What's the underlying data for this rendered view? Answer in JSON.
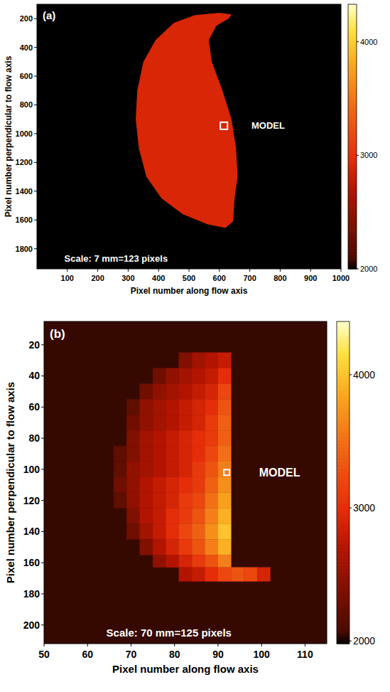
{
  "chart_data": [
    {
      "type": "heatmap",
      "panel_label": "(a)",
      "x_label": "Pixel number along flow axis",
      "y_label": "Pixel number perpendicular to flow axis",
      "xlim": [
        0,
        1000
      ],
      "ylim": [
        100,
        1940
      ],
      "xticks": [
        100,
        200,
        300,
        400,
        500,
        600,
        700,
        800,
        900,
        1000
      ],
      "yticks": [
        200,
        400,
        600,
        800,
        1000,
        1200,
        1400,
        1600,
        1800
      ],
      "background": 2000,
      "region": {
        "x": [
          600,
          520,
          450,
          390,
          350,
          330,
          325,
          335,
          360,
          410,
          480,
          560,
          620,
          645,
          650,
          660,
          655,
          640,
          610,
          575,
          565,
          590,
          630,
          640
        ],
        "y": [
          160,
          175,
          230,
          350,
          500,
          700,
          900,
          1100,
          1300,
          1450,
          1560,
          1630,
          1655,
          1610,
          1450,
          1300,
          1100,
          900,
          700,
          500,
          350,
          250,
          200,
          170
        ],
        "value": 2900
      },
      "probe": {
        "x": 615,
        "y": 945
      },
      "model_label": "MODEL",
      "scale_note": "Scale: 7 mm=123 pixels",
      "colorbar": {
        "range": [
          2000,
          4330
        ],
        "ticks": [
          2000,
          3000,
          4000
        ]
      }
    },
    {
      "type": "heatmap",
      "panel_label": "(b)",
      "x_label": "Pixel number along flow axis",
      "y_label": "Pixel number perpendicular to flow axis",
      "xlim": [
        50,
        115
      ],
      "ylim": [
        5,
        212
      ],
      "xticks": [
        50,
        60,
        70,
        80,
        90,
        100,
        110
      ],
      "yticks": [
        20,
        40,
        60,
        80,
        100,
        120,
        140,
        160,
        180,
        200
      ],
      "background": 2050,
      "cells": {
        "x_edges": [
          66,
          69,
          72,
          75,
          78,
          81,
          84,
          87,
          90,
          93,
          96,
          99,
          102
        ],
        "y_edges": [
          25,
          35,
          45,
          55,
          65,
          75,
          85,
          95,
          105,
          115,
          125,
          135,
          145,
          155,
          163,
          172
        ],
        "z": [
          [
            null,
            null,
            null,
            null,
            null,
            2400,
            2600,
            2700,
            2800,
            null,
            null,
            null
          ],
          [
            null,
            null,
            null,
            2300,
            2500,
            2600,
            2700,
            2800,
            3000,
            null,
            null,
            null
          ],
          [
            null,
            null,
            2300,
            2500,
            2600,
            2700,
            2800,
            2900,
            3200,
            null,
            null,
            null
          ],
          [
            null,
            2200,
            2500,
            2600,
            2700,
            2800,
            2900,
            3000,
            3300,
            null,
            null,
            null
          ],
          [
            null,
            2300,
            2500,
            2600,
            2700,
            2800,
            2900,
            3100,
            3400,
            null,
            null,
            null
          ],
          [
            null,
            2400,
            2600,
            2700,
            2800,
            2900,
            3000,
            3100,
            3400,
            null,
            null,
            null
          ],
          [
            2200,
            2400,
            2600,
            2700,
            2800,
            2900,
            3000,
            3200,
            3500,
            null,
            null,
            null
          ],
          [
            2200,
            2500,
            2600,
            2700,
            2800,
            2900,
            3100,
            3300,
            3600,
            null,
            null,
            null
          ],
          [
            2300,
            2500,
            2700,
            2800,
            2900,
            3000,
            3100,
            3400,
            3700,
            null,
            null,
            null
          ],
          [
            2200,
            2500,
            2700,
            2800,
            2900,
            3100,
            3200,
            3500,
            3800,
            null,
            null,
            null
          ],
          [
            null,
            2400,
            2700,
            2800,
            3000,
            3100,
            3300,
            3600,
            3900,
            null,
            null,
            null
          ],
          [
            null,
            2300,
            2600,
            2800,
            3000,
            3200,
            3400,
            3700,
            4000,
            null,
            null,
            null
          ],
          [
            null,
            null,
            2400,
            2700,
            2900,
            3100,
            3300,
            3600,
            3900,
            null,
            null,
            null
          ],
          [
            null,
            null,
            null,
            2500,
            2700,
            2900,
            3100,
            3300,
            3600,
            null,
            null,
            null
          ],
          [
            null,
            null,
            null,
            null,
            null,
            2700,
            2800,
            3000,
            3200,
            3300,
            3200,
            2900
          ]
        ]
      },
      "probe": {
        "x": 92,
        "y": 102
      },
      "model_label": "MODEL",
      "scale_note": "Scale: 70 mm=125 pixels",
      "colorbar": {
        "range": [
          1980,
          4400
        ],
        "ticks": [
          2000,
          3000,
          4000
        ]
      }
    }
  ]
}
